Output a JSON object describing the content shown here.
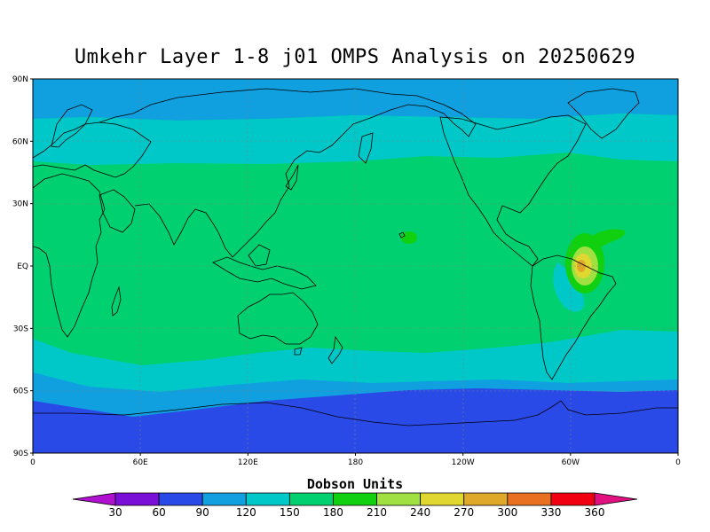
{
  "title": "Umkehr Layer 1-8 j01 OMPS Analysis on 20250629",
  "lat_labels": [
    "90N",
    "60N",
    "30N",
    "EQ",
    "30S",
    "60S",
    "90S"
  ],
  "lon_labels": [
    "0",
    "60E",
    "120E",
    "180",
    "120W",
    "60W",
    "0"
  ],
  "colorbar": {
    "title": "Dobson Units",
    "labels": [
      "30",
      "60",
      "90",
      "120",
      "150",
      "180",
      "210",
      "240",
      "270",
      "300",
      "330",
      "360"
    ],
    "colors": [
      "#b010d0",
      "#7a10d8",
      "#2a4ae8",
      "#10a0e0",
      "#00c8c8",
      "#00d070",
      "#10d010",
      "#a0e040",
      "#e0d830",
      "#e0a828",
      "#e87020",
      "#f00010",
      "#e01080"
    ]
  },
  "field": {
    "bands": [
      {
        "range": "90-120",
        "color": "#2a4ae8"
      },
      {
        "range": "120-150",
        "color": "#10a0e0"
      },
      {
        "range": "150-180",
        "color": "#00c8c8"
      },
      {
        "range": "180-210",
        "color": "#00d070"
      },
      {
        "range": "210-240",
        "color": "#10d010"
      },
      {
        "range": "240-270",
        "color": "#a0e040"
      },
      {
        "range": "270-300",
        "color": "#e0d830"
      },
      {
        "range": "300-330",
        "color": "#e0a828"
      }
    ]
  }
}
